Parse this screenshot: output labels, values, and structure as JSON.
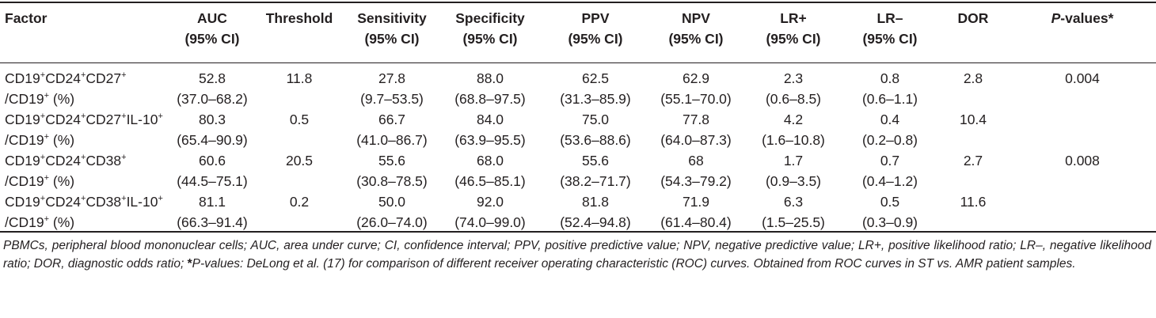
{
  "headers": [
    {
      "l1": "Factor",
      "l2": ""
    },
    {
      "l1": "AUC",
      "l2": "(95% CI)"
    },
    {
      "l1": "Threshold",
      "l2": ""
    },
    {
      "l1": "Sensitivity",
      "l2": "(95% CI)"
    },
    {
      "l1": "Specificity",
      "l2": "(95% CI)"
    },
    {
      "l1": "PPV",
      "l2": "(95% CI)"
    },
    {
      "l1": "NPV",
      "l2": "(95% CI)"
    },
    {
      "l1": "LR+",
      "l2": "(95% CI)"
    },
    {
      "l1": "LR–",
      "l2": "(95% CI)"
    },
    {
      "l1": "DOR",
      "l2": ""
    },
    {
      "l1_italic": "P",
      "l1_rest": "-values*",
      "l2": ""
    }
  ],
  "rows": [
    {
      "factor": {
        "base": "CD19",
        "s1": "+",
        "m1": "CD24",
        "s2": "+",
        "m2": "CD27",
        "s3": "+",
        "tail": "",
        "line2_pre": "/CD19",
        "line2_sup": "+",
        "line2_post": " (%)"
      },
      "auc": "52.8",
      "auc_ci": "(37.0–68.2)",
      "threshold": "11.8",
      "sens": "27.8",
      "sens_ci": "(9.7–53.5)",
      "spec": "88.0",
      "spec_ci": "(68.8–97.5)",
      "ppv": "62.5",
      "ppv_ci": "(31.3–85.9)",
      "npv": "62.9",
      "npv_ci": "(55.1–70.0)",
      "lrp": "2.3",
      "lrp_ci": "(0.6–8.5)",
      "lrm": "0.8",
      "lrm_ci": "(0.6–1.1)",
      "dor": "2.8",
      "p": "0.004"
    },
    {
      "factor": {
        "base": "CD19",
        "s1": "+",
        "m1": "CD24",
        "s2": "+",
        "m2": "CD27",
        "s3": "+",
        "tail": "IL-10",
        "tail_sup": "+",
        "line2_pre": "/CD19",
        "line2_sup": "+",
        "line2_post": " (%)"
      },
      "auc": "80.3",
      "auc_ci": "(65.4–90.9)",
      "threshold": "0.5",
      "sens": "66.7",
      "sens_ci": "(41.0–86.7)",
      "spec": "84.0",
      "spec_ci": "(63.9–95.5)",
      "ppv": "75.0",
      "ppv_ci": "(53.6–88.6)",
      "npv": "77.8",
      "npv_ci": "(64.0–87.3)",
      "lrp": "4.2",
      "lrp_ci": "(1.6–10.8)",
      "lrm": "0.4",
      "lrm_ci": "(0.2–0.8)",
      "dor": "10.4",
      "p": ""
    },
    {
      "factor": {
        "base": "CD19",
        "s1": "+",
        "m1": "CD24",
        "s2": "+",
        "m2": "CD38",
        "s3": "+",
        "tail": "",
        "line2_pre": "/CD19",
        "line2_sup": "+",
        "line2_post": " (%)"
      },
      "auc": "60.6",
      "auc_ci": "(44.5–75.1)",
      "threshold": "20.5",
      "sens": "55.6",
      "sens_ci": "(30.8–78.5)",
      "spec": "68.0",
      "spec_ci": "(46.5–85.1)",
      "ppv": "55.6",
      "ppv_ci": "(38.2–71.7)",
      "npv": "68",
      "npv_ci": "(54.3–79.2)",
      "lrp": "1.7",
      "lrp_ci": "(0.9–3.5)",
      "lrm": "0.7",
      "lrm_ci": "(0.4–1.2)",
      "dor": "2.7",
      "p": "0.008"
    },
    {
      "factor": {
        "base": "CD19",
        "s1": "+",
        "m1": "CD24",
        "s2": "+",
        "m2": "CD38",
        "s3": "+",
        "tail": "IL-10",
        "tail_sup": "+",
        "line2_pre": "/CD19",
        "line2_sup": "+",
        "line2_post": " (%)"
      },
      "auc": "81.1",
      "auc_ci": "(66.3–91.4)",
      "threshold": "0.2",
      "sens": "50.0",
      "sens_ci": "(26.0–74.0)",
      "spec": "92.0",
      "spec_ci": "(74.0–99.0)",
      "ppv": "81.8",
      "ppv_ci": "(52.4–94.8)",
      "npv": "71.9",
      "npv_ci": "(61.4–80.4)",
      "lrp": "6.3",
      "lrp_ci": "(1.5–25.5)",
      "lrm": "0.5",
      "lrm_ci": "(0.3–0.9)",
      "dor": "11.6",
      "p": ""
    }
  ],
  "footnote": {
    "part1": "PBMCs, peripheral blood mononuclear cells; AUC, area under curve; CI, confidence interval; PPV, positive predictive value; NPV, negative predictive value; LR+, positive likelihood ratio; LR–, negative likelihood ratio; DOR, diagnostic odds ratio; ",
    "star": "*",
    "part2": "P-values: DeLong et al. (17) for comparison of different receiver operating characteristic (ROC) curves. Obtained from ROC curves in ST vs. AMR patient samples."
  }
}
